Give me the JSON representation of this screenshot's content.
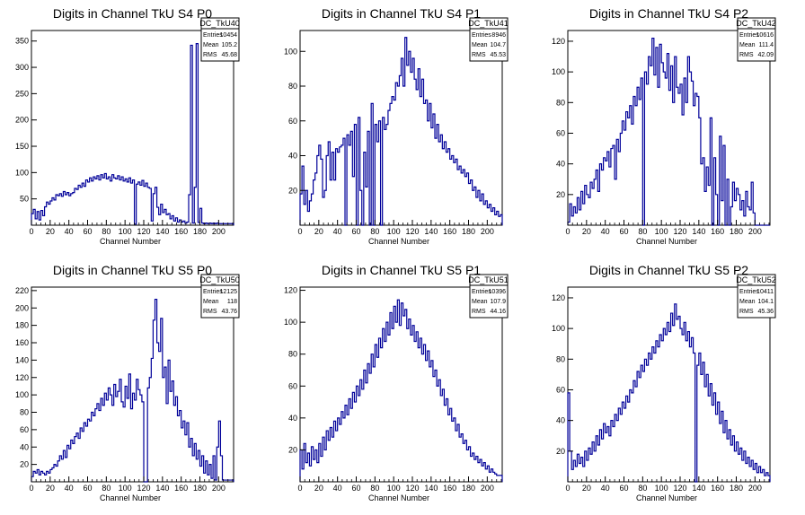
{
  "colors": {
    "histogram": "#000099",
    "axes": "#000000",
    "background": "#ffffff"
  },
  "chart_data": [
    {
      "type": "histogram",
      "title": "Digits in Channel TkU S4 P0",
      "xlabel": "Channel Number",
      "xlim": [
        0,
        216
      ],
      "ylim": [
        0,
        370
      ],
      "xticks": [
        "0",
        "20",
        "40",
        "60",
        "80",
        "100",
        "120",
        "140",
        "160",
        "180",
        "200"
      ],
      "yticks": [
        "50",
        "100",
        "150",
        "200",
        "250",
        "300",
        "350"
      ],
      "xtick_values": [
        0,
        20,
        40,
        60,
        80,
        100,
        120,
        140,
        160,
        180,
        200
      ],
      "ytick_values": [
        50,
        100,
        150,
        200,
        250,
        300,
        350
      ],
      "stats": {
        "name": "DC_TkU40",
        "entries_label": "Entries",
        "entries": "10454",
        "mean_label": "Mean",
        "mean": "105.2",
        "rms_label": "RMS",
        "rms": "45.68"
      },
      "bin_width": 2,
      "values": [
        22,
        30,
        12,
        26,
        10,
        28,
        18,
        35,
        44,
        40,
        46,
        52,
        48,
        58,
        56,
        60,
        55,
        64,
        58,
        62,
        56,
        60,
        62,
        70,
        68,
        76,
        72,
        80,
        74,
        86,
        82,
        90,
        84,
        92,
        88,
        94,
        86,
        96,
        90,
        98,
        88,
        92,
        84,
        96,
        90,
        88,
        94,
        86,
        92,
        84,
        88,
        82,
        90,
        80,
        86,
        2,
        78,
        82,
        76,
        85,
        74,
        80,
        72,
        70,
        8,
        60,
        72,
        34,
        20,
        40,
        24,
        30,
        20,
        22,
        12,
        18,
        8,
        14,
        6,
        10,
        6,
        8,
        4,
        6,
        4,
        8,
        4,
        6,
        4,
        5,
        3,
        4,
        3,
        4,
        3,
        4,
        3,
        4,
        3,
        4,
        3,
        3,
        3,
        3,
        3,
        3,
        3,
        3
      ],
      "spikes": [
        [
          84,
          58
        ],
        [
          85,
          342
        ],
        [
          87,
          72
        ],
        [
          88,
          345
        ],
        [
          90,
          32
        ]
      ]
    },
    {
      "type": "histogram",
      "title": "Digits in Channel TkU S4 P1",
      "xlabel": "Channel Number",
      "xlim": [
        0,
        216
      ],
      "ylim": [
        0,
        112
      ],
      "xticks": [
        "0",
        "20",
        "40",
        "60",
        "80",
        "100",
        "120",
        "140",
        "160",
        "180",
        "200"
      ],
      "yticks": [
        "20",
        "40",
        "60",
        "80",
        "100"
      ],
      "xtick_values": [
        0,
        20,
        40,
        60,
        80,
        100,
        120,
        140,
        160,
        180,
        200
      ],
      "ytick_values": [
        20,
        40,
        60,
        80,
        100
      ],
      "stats": {
        "name": "DC_TkU41",
        "entries_label": "Entries",
        "entries": "8946",
        "mean_label": "Mean",
        "mean": "104.7",
        "rms_label": "RMS",
        "rms": "45.53"
      },
      "bin_width": 2,
      "values": [
        18,
        34,
        12,
        20,
        8,
        14,
        18,
        26,
        30,
        40,
        46,
        38,
        16,
        20,
        40,
        48,
        26,
        42,
        26,
        44,
        42,
        45,
        46,
        50,
        0,
        52,
        46,
        54,
        28,
        58,
        0,
        62,
        20,
        0,
        42,
        22,
        54,
        0,
        70,
        0,
        58,
        48,
        60,
        0,
        62,
        55,
        58,
        66,
        70,
        74,
        72,
        82,
        80,
        86,
        96,
        80,
        108,
        92,
        100,
        88,
        96,
        84,
        78,
        90,
        74,
        84,
        70,
        72,
        60,
        70,
        56,
        64,
        50,
        58,
        48,
        52,
        44,
        48,
        42,
        44,
        38,
        40,
        36,
        38,
        32,
        34,
        30,
        32,
        28,
        30,
        24,
        26,
        20,
        22,
        16,
        20,
        14,
        18,
        12,
        14,
        10,
        12,
        8,
        10,
        6,
        8,
        5,
        6
      ],
      "spikes": []
    },
    {
      "type": "histogram",
      "title": "Digits in Channel TkU S4 P2",
      "xlabel": "Channel Number",
      "xlim": [
        0,
        216
      ],
      "ylim": [
        0,
        127
      ],
      "xticks": [
        "0",
        "20",
        "40",
        "60",
        "80",
        "100",
        "120",
        "140",
        "160",
        "180",
        "200"
      ],
      "yticks": [
        "20",
        "40",
        "60",
        "80",
        "100",
        "120"
      ],
      "xtick_values": [
        0,
        20,
        40,
        60,
        80,
        100,
        120,
        140,
        160,
        180,
        200
      ],
      "ytick_values": [
        20,
        40,
        60,
        80,
        100,
        120
      ],
      "stats": {
        "name": "DC_TkU42",
        "entries_label": "Entries",
        "entries": "10616",
        "mean_label": "Mean",
        "mean": "111.4",
        "rms_label": "RMS",
        "rms": "42.09"
      },
      "bin_width": 2,
      "values": [
        2,
        14,
        6,
        12,
        8,
        18,
        10,
        22,
        14,
        26,
        20,
        18,
        28,
        24,
        30,
        36,
        22,
        40,
        36,
        44,
        42,
        48,
        38,
        50,
        52,
        30,
        56,
        48,
        60,
        68,
        62,
        74,
        70,
        78,
        66,
        84,
        78,
        90,
        82,
        96,
        86,
        100,
        92,
        110,
        104,
        122,
        98,
        116,
        90,
        118,
        106,
        100,
        96,
        112,
        88,
        104,
        80,
        110,
        90,
        86,
        92,
        72,
        96,
        80,
        110,
        100,
        94,
        78,
        86,
        84,
        70,
        40,
        44,
        22,
        38,
        26,
        70,
        0,
        44,
        20,
        0,
        58,
        16,
        52,
        0,
        30,
        0,
        12,
        28,
        16,
        24,
        20,
        10,
        16,
        6,
        22,
        12,
        10,
        28,
        8,
        0,
        0,
        0,
        0,
        0,
        0,
        0,
        0
      ],
      "spikes": [
        [
          40,
          0
        ],
        [
          84,
          0
        ],
        [
          100,
          0
        ]
      ]
    },
    {
      "type": "histogram",
      "title": "Digits in Channel TkU S5 P0",
      "xlabel": "Channel Number",
      "xlim": [
        0,
        216
      ],
      "ylim": [
        0,
        224
      ],
      "xticks": [
        "0",
        "20",
        "40",
        "60",
        "80",
        "100",
        "120",
        "140",
        "160",
        "180",
        "200"
      ],
      "yticks": [
        "20",
        "40",
        "60",
        "80",
        "100",
        "120",
        "140",
        "160",
        "180",
        "200",
        "220"
      ],
      "xtick_values": [
        0,
        20,
        40,
        60,
        80,
        100,
        120,
        140,
        160,
        180,
        200
      ],
      "ytick_values": [
        20,
        40,
        60,
        80,
        100,
        120,
        140,
        160,
        180,
        200,
        220
      ],
      "stats": {
        "name": "DC_TkU50",
        "entries_label": "Entries",
        "entries": "12125",
        "mean_label": "Mean",
        "mean": "118",
        "rms_label": "RMS",
        "rms": "43.76"
      },
      "bin_width": 2,
      "values": [
        6,
        12,
        10,
        14,
        8,
        12,
        10,
        8,
        12,
        10,
        14,
        16,
        20,
        18,
        24,
        30,
        26,
        36,
        28,
        42,
        38,
        48,
        44,
        52,
        56,
        50,
        62,
        58,
        68,
        64,
        72,
        70,
        80,
        76,
        84,
        90,
        82,
        96,
        88,
        102,
        94,
        108,
        100,
        88,
        112,
        98,
        104,
        118,
        92,
        86,
        110,
        96,
        124,
        84,
        102,
        94,
        118,
        106,
        100,
        92,
        0,
        96,
        108,
        120,
        142,
        186,
        210,
        160,
        150,
        188,
        120,
        132,
        90,
        140,
        104,
        116,
        88,
        98,
        76,
        82,
        62,
        70,
        54,
        68,
        40,
        50,
        30,
        44,
        26,
        36,
        18,
        30,
        10,
        24,
        8,
        20,
        4,
        30,
        2,
        40,
        70,
        30,
        2,
        2,
        2,
        2,
        2,
        2
      ],
      "spikes": [
        [
          61,
          0
        ]
      ]
    },
    {
      "type": "histogram",
      "title": "Digits in Channel TkU S5 P1",
      "xlabel": "Channel Number",
      "xlim": [
        0,
        216
      ],
      "ylim": [
        0,
        122
      ],
      "xticks": [
        "0",
        "20",
        "40",
        "60",
        "80",
        "100",
        "120",
        "140",
        "160",
        "180",
        "200"
      ],
      "yticks": [
        "20",
        "40",
        "60",
        "80",
        "100",
        "120"
      ],
      "xtick_values": [
        0,
        20,
        40,
        60,
        80,
        100,
        120,
        140,
        160,
        180,
        200
      ],
      "ytick_values": [
        20,
        40,
        60,
        80,
        100,
        120
      ],
      "stats": {
        "name": "DC_TkU51",
        "entries_label": "Entries",
        "entries": "10396",
        "mean_label": "Mean",
        "mean": "107.9",
        "rms_label": "RMS",
        "rms": "44.16"
      },
      "bin_width": 2,
      "values": [
        20,
        8,
        24,
        12,
        18,
        10,
        22,
        14,
        20,
        12,
        24,
        16,
        28,
        20,
        32,
        26,
        34,
        28,
        38,
        32,
        40,
        36,
        44,
        40,
        48,
        42,
        52,
        46,
        56,
        50,
        60,
        54,
        64,
        58,
        70,
        62,
        74,
        68,
        80,
        72,
        86,
        78,
        90,
        84,
        96,
        88,
        100,
        92,
        106,
        96,
        110,
        100,
        114,
        98,
        112,
        104,
        108,
        96,
        102,
        92,
        98,
        88,
        94,
        84,
        90,
        80,
        86,
        76,
        82,
        72,
        76,
        66,
        70,
        60,
        64,
        54,
        58,
        48,
        52,
        42,
        46,
        38,
        40,
        32,
        36,
        28,
        30,
        24,
        26,
        20,
        22,
        16,
        18,
        14,
        16,
        12,
        14,
        10,
        12,
        8,
        10,
        6,
        8,
        6,
        5,
        4,
        4,
        4
      ],
      "spikes": []
    },
    {
      "type": "histogram",
      "title": "Digits in Channel TkU S5 P2",
      "xlabel": "Channel Number",
      "xlim": [
        0,
        216
      ],
      "ylim": [
        0,
        127
      ],
      "xticks": [
        "0",
        "20",
        "40",
        "60",
        "80",
        "100",
        "120",
        "140",
        "160",
        "180",
        "200"
      ],
      "yticks": [
        "20",
        "40",
        "60",
        "80",
        "100",
        "120"
      ],
      "xtick_values": [
        0,
        20,
        40,
        60,
        80,
        100,
        120,
        140,
        160,
        180,
        200
      ],
      "ytick_values": [
        20,
        40,
        60,
        80,
        100,
        120
      ],
      "stats": {
        "name": "DC_TkU52",
        "entries_label": "Entries",
        "entries": "10411",
        "mean_label": "Mean",
        "mean": "104.1",
        "rms_label": "RMS",
        "rms": "45.36"
      },
      "bin_width": 2,
      "values": [
        58,
        20,
        8,
        14,
        10,
        18,
        12,
        16,
        10,
        20,
        14,
        22,
        18,
        26,
        20,
        30,
        24,
        34,
        28,
        38,
        32,
        36,
        30,
        40,
        36,
        44,
        40,
        48,
        44,
        52,
        48,
        56,
        52,
        60,
        58,
        66,
        62,
        72,
        68,
        76,
        72,
        80,
        76,
        84,
        80,
        88,
        84,
        92,
        88,
        96,
        92,
        100,
        96,
        104,
        98,
        110,
        102,
        116,
        106,
        108,
        100,
        96,
        104,
        92,
        98,
        88,
        94,
        84,
        90,
        76,
        84,
        70,
        78,
        62,
        70,
        56,
        64,
        50,
        58,
        44,
        52,
        38,
        46,
        32,
        40,
        28,
        34,
        24,
        30,
        20,
        26,
        18,
        22,
        14,
        20,
        12,
        16,
        10,
        14,
        8,
        12,
        6,
        10,
        6,
        8,
        4,
        6,
        4
      ],
      "spikes": [
        [
          68,
          0
        ]
      ]
    }
  ]
}
